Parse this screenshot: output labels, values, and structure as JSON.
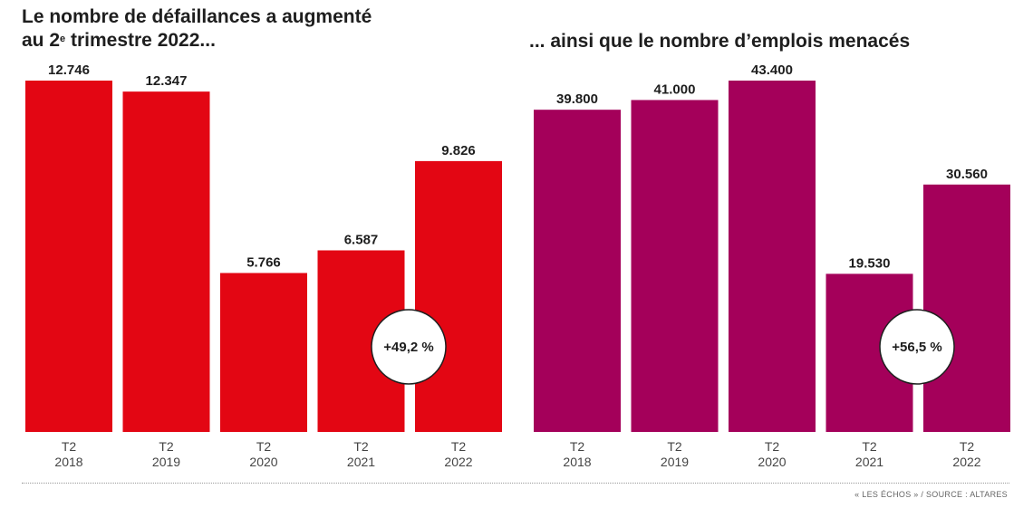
{
  "titles": {
    "left_prefix": "Le nombre de défaillances a augmenté",
    "left_line2_start": "au 2",
    "left_sup": "e",
    "left_line2_end": " trimestre 2022...",
    "right": "... ainsi que le nombre d’emplois menacés"
  },
  "chart_data": [
    {
      "type": "bar",
      "title": "Le nombre de défaillances a augmenté au 2e trimestre 2022...",
      "categories": [
        "T2 2018",
        "T2 2019",
        "T2 2020",
        "T2 2021",
        "T2 2022"
      ],
      "tick_lines": [
        [
          "T2",
          "2018"
        ],
        [
          "T2",
          "2019"
        ],
        [
          "T2",
          "2020"
        ],
        [
          "T2",
          "2021"
        ],
        [
          "T2",
          "2022"
        ]
      ],
      "values": [
        12746,
        12347,
        5766,
        6587,
        9826
      ],
      "value_labels": [
        "12.746",
        "12.347",
        "5.766",
        "6.587",
        "9.826"
      ],
      "color": "#e30613",
      "ylim": [
        0,
        12746
      ],
      "grid": false,
      "annotation": "+49,2 %"
    },
    {
      "type": "bar",
      "title": "... ainsi que le nombre d’emplois menacés",
      "categories": [
        "T2 2018",
        "T2 2019",
        "T2 2020",
        "T2 2021",
        "T2 2022"
      ],
      "tick_lines": [
        [
          "T2",
          "2018"
        ],
        [
          "T2",
          "2019"
        ],
        [
          "T2",
          "2020"
        ],
        [
          "T2",
          "2021"
        ],
        [
          "T2",
          "2022"
        ]
      ],
      "values": [
        39800,
        41000,
        43400,
        19530,
        30560
      ],
      "value_labels": [
        "39.800",
        "41.000",
        "43.400",
        "19.530",
        "30.560"
      ],
      "color": "#a4005a",
      "ylim": [
        0,
        43400
      ],
      "grid": false,
      "annotation": "+56,5 %"
    }
  ],
  "source": "« LES ÉCHOS » / SOURCE : ALTARES"
}
